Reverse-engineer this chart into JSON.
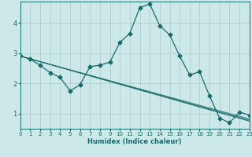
{
  "xlabel": "Humidex (Indice chaleur)",
  "background_color": "#cce8e8",
  "grid_color": "#aacccc",
  "line_color": "#1a6b6b",
  "xlim": [
    0,
    23
  ],
  "ylim": [
    0.5,
    4.7
  ],
  "x_ticks": [
    0,
    1,
    2,
    3,
    4,
    5,
    6,
    7,
    8,
    9,
    10,
    11,
    12,
    13,
    14,
    15,
    16,
    17,
    18,
    19,
    20,
    21,
    22,
    23
  ],
  "y_ticks": [
    1,
    2,
    3,
    4
  ],
  "line1_x": [
    0,
    1,
    2,
    3,
    4,
    5,
    6,
    7,
    8,
    9,
    10,
    11,
    12,
    13,
    14,
    15,
    16,
    17,
    18,
    19,
    20,
    21,
    22,
    23
  ],
  "line1_y": [
    2.9,
    2.8,
    2.6,
    2.35,
    2.2,
    1.75,
    1.95,
    2.55,
    2.6,
    2.7,
    3.35,
    3.65,
    4.5,
    4.62,
    3.9,
    3.6,
    2.9,
    2.28,
    2.38,
    1.58,
    0.85,
    0.7,
    1.05,
    0.95
  ],
  "trend_lines": [
    {
      "x": [
        0,
        23
      ],
      "y": [
        2.9,
        0.82
      ]
    },
    {
      "x": [
        0,
        23
      ],
      "y": [
        2.9,
        0.75
      ]
    },
    {
      "x": [
        0,
        23
      ],
      "y": [
        2.9,
        0.78
      ]
    }
  ],
  "marker_style": "D",
  "marker_size": 2.5,
  "line_width": 0.9
}
